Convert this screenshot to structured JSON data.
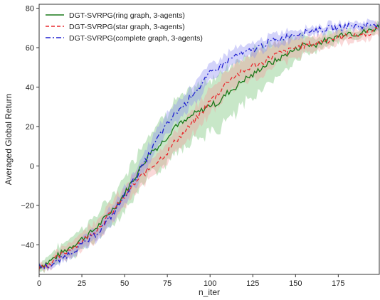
{
  "chart_data": {
    "type": "line",
    "xlabel": "n_iter",
    "ylabel": "Averaged Global Return",
    "xlim": [
      0,
      199
    ],
    "ylim": [
      -55,
      82
    ],
    "xticks": [
      0,
      25,
      50,
      75,
      100,
      125,
      150,
      175
    ],
    "yticks": [
      -40,
      -20,
      0,
      20,
      40,
      60,
      80
    ],
    "grid": false,
    "legend_position": "top-left",
    "x": [
      0,
      5,
      10,
      15,
      20,
      25,
      30,
      35,
      40,
      45,
      50,
      55,
      60,
      65,
      70,
      75,
      80,
      85,
      90,
      95,
      100,
      105,
      110,
      115,
      120,
      125,
      130,
      135,
      140,
      145,
      150,
      155,
      160,
      165,
      170,
      175,
      180,
      185,
      190,
      195,
      199
    ],
    "series": [
      {
        "name": "DGT-SVRPG(ring graph, 3-agents)",
        "color": "#1a7a1a",
        "band_color": "#6fbf6f",
        "style": "solid",
        "values": [
          -51,
          -49,
          -46,
          -43,
          -40,
          -37,
          -34,
          -30,
          -25,
          -20,
          -14,
          -7,
          0,
          7,
          10,
          15,
          21,
          22,
          26,
          28,
          31,
          32,
          37,
          40,
          44,
          46,
          50,
          52,
          54,
          57,
          59,
          62,
          61,
          63,
          64,
          66,
          68,
          67,
          68,
          69,
          71
        ],
        "band": [
          2,
          3,
          4,
          4,
          5,
          5,
          6,
          6,
          7,
          7,
          8,
          9,
          10,
          11,
          11,
          12,
          12,
          12,
          12,
          13,
          13,
          13,
          13,
          13,
          12,
          11,
          10,
          9,
          8,
          7,
          6,
          5,
          4,
          3,
          3,
          3,
          2,
          2,
          2,
          2,
          2
        ]
      },
      {
        "name": "DGT-SVRPG(star graph, 3-agents)",
        "color": "#e8282d",
        "band_color": "#f39a9a",
        "style": "dashed",
        "values": [
          -51,
          -50,
          -47,
          -44,
          -41,
          -38,
          -35,
          -31,
          -26,
          -21,
          -16,
          -10,
          -5,
          -1,
          3,
          7,
          13,
          17,
          22,
          27,
          33,
          37,
          43,
          46,
          48,
          51,
          52,
          55,
          57,
          58,
          60,
          61,
          62,
          63,
          64,
          65,
          66,
          66,
          67,
          68,
          70
        ],
        "band": [
          2,
          2,
          3,
          3,
          4,
          4,
          5,
          5,
          5,
          5,
          5,
          5,
          5,
          5,
          5,
          5,
          5,
          5,
          6,
          6,
          6,
          6,
          6,
          6,
          6,
          6,
          6,
          6,
          5,
          5,
          5,
          4,
          4,
          4,
          3,
          3,
          3,
          3,
          3,
          3,
          3
        ]
      },
      {
        "name": "DGT-SVRPG(complete graph, 3-agents)",
        "color": "#1f1fd0",
        "band_color": "#8c8cf2",
        "style": "dashdot",
        "values": [
          -51,
          -51,
          -49,
          -46,
          -43,
          -40,
          -37,
          -33,
          -28,
          -22,
          -15,
          -8,
          -1,
          7,
          15,
          21,
          27,
          31,
          37,
          41,
          47,
          50,
          53,
          56,
          57,
          59,
          61,
          63,
          64,
          66,
          67,
          68,
          69,
          69,
          70,
          70,
          71,
          71,
          71,
          72,
          72
        ],
        "band": [
          1,
          1,
          2,
          2,
          2,
          3,
          3,
          3,
          4,
          4,
          4,
          4,
          4,
          5,
          5,
          5,
          5,
          5,
          5,
          5,
          4,
          4,
          4,
          4,
          3,
          3,
          3,
          3,
          3,
          3,
          2,
          2,
          2,
          2,
          2,
          2,
          2,
          2,
          2,
          2,
          2
        ]
      }
    ]
  }
}
